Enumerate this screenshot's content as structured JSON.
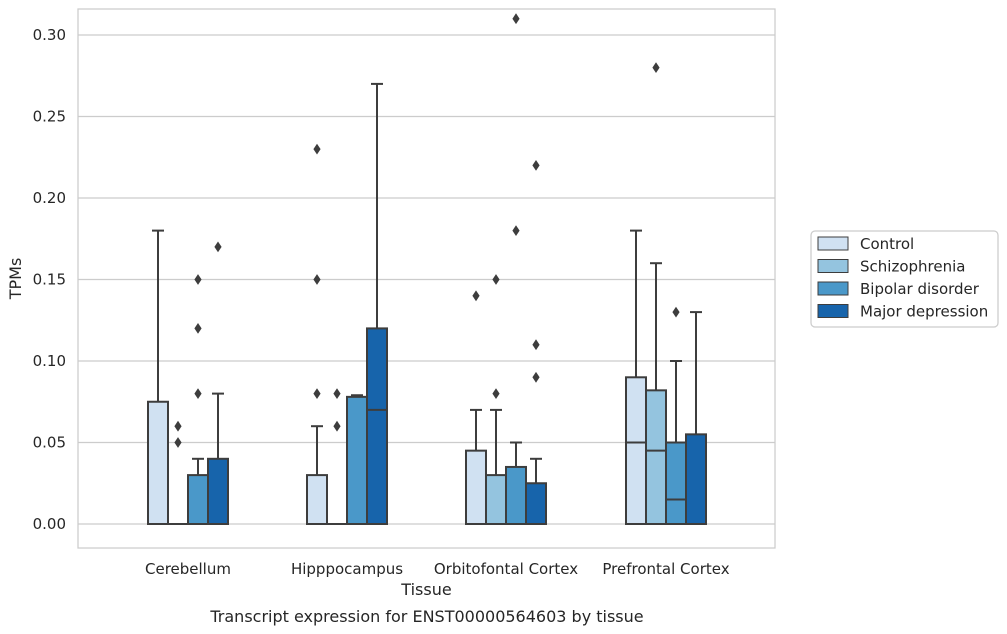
{
  "chart_data": {
    "type": "box",
    "title": "",
    "caption": "Transcript expression for ENST00000564603 by tissue",
    "xlabel": "Tissue",
    "ylabel": "TPMs",
    "ylim": [
      -0.015,
      0.325
    ],
    "yticks": [
      0.0,
      0.05,
      0.1,
      0.15,
      0.2,
      0.25,
      0.3
    ],
    "ytick_labels": [
      "0.00",
      "0.05",
      "0.10",
      "0.15",
      "0.20",
      "0.25",
      "0.30"
    ],
    "grid": "horizontal",
    "legend_position": "right",
    "categories": [
      "Cerebellum",
      "Hipppocampus",
      "Orbitofontal Cortex",
      "Prefrontal Cortex"
    ],
    "series": [
      {
        "name": "Control",
        "color": "#d0e1f2",
        "boxes": [
          {
            "q1": 0.0,
            "median": 0.0,
            "q3": 0.075,
            "whisker_low": 0.0,
            "whisker_high": 0.18,
            "outliers": []
          },
          {
            "q1": 0.0,
            "median": 0.0,
            "q3": 0.03,
            "whisker_low": 0.0,
            "whisker_high": 0.06,
            "outliers": [
              0.08,
              0.15,
              0.23
            ]
          },
          {
            "q1": 0.0,
            "median": 0.0,
            "q3": 0.045,
            "whisker_low": 0.0,
            "whisker_high": 0.07,
            "outliers": [
              0.14
            ]
          },
          {
            "q1": 0.0,
            "median": 0.05,
            "q3": 0.09,
            "whisker_low": 0.0,
            "whisker_high": 0.18,
            "outliers": []
          }
        ]
      },
      {
        "name": "Schizophrenia",
        "color": "#94c4df",
        "boxes": [
          {
            "q1": 0.0,
            "median": 0.0,
            "q3": 0.0,
            "whisker_low": 0.0,
            "whisker_high": 0.0,
            "outliers": [
              0.05,
              0.06
            ]
          },
          {
            "q1": 0.0,
            "median": 0.0,
            "q3": 0.0,
            "whisker_low": 0.0,
            "whisker_high": 0.0,
            "outliers": [
              0.06,
              0.08
            ]
          },
          {
            "q1": 0.0,
            "median": 0.0,
            "q3": 0.03,
            "whisker_low": 0.0,
            "whisker_high": 0.07,
            "outliers": [
              0.08,
              0.15
            ]
          },
          {
            "q1": 0.0,
            "median": 0.045,
            "q3": 0.082,
            "whisker_low": 0.0,
            "whisker_high": 0.16,
            "outliers": [
              0.28
            ]
          }
        ]
      },
      {
        "name": "Bipolar disorder",
        "color": "#4a98c9",
        "boxes": [
          {
            "q1": 0.0,
            "median": 0.0,
            "q3": 0.03,
            "whisker_low": 0.0,
            "whisker_high": 0.04,
            "outliers": [
              0.08,
              0.12,
              0.15
            ]
          },
          {
            "q1": 0.0,
            "median": 0.0,
            "q3": 0.078,
            "whisker_low": 0.0,
            "whisker_high": 0.079,
            "outliers": []
          },
          {
            "q1": 0.0,
            "median": 0.0,
            "q3": 0.035,
            "whisker_low": 0.0,
            "whisker_high": 0.05,
            "outliers": [
              0.18,
              0.31
            ]
          },
          {
            "q1": 0.0,
            "median": 0.015,
            "q3": 0.05,
            "whisker_low": 0.0,
            "whisker_high": 0.1,
            "outliers": [
              0.13
            ]
          }
        ]
      },
      {
        "name": "Major depression",
        "color": "#1764ab",
        "boxes": [
          {
            "q1": 0.0,
            "median": 0.0,
            "q3": 0.04,
            "whisker_low": 0.0,
            "whisker_high": 0.08,
            "outliers": [
              0.17
            ]
          },
          {
            "q1": 0.0,
            "median": 0.07,
            "q3": 0.12,
            "whisker_low": 0.0,
            "whisker_high": 0.27,
            "outliers": []
          },
          {
            "q1": 0.0,
            "median": 0.0,
            "q3": 0.025,
            "whisker_low": 0.0,
            "whisker_high": 0.04,
            "outliers": [
              0.09,
              0.11,
              0.22
            ]
          },
          {
            "q1": 0.0,
            "median": 0.0,
            "q3": 0.055,
            "whisker_low": 0.0,
            "whisker_high": 0.13,
            "outliers": []
          }
        ]
      }
    ]
  }
}
